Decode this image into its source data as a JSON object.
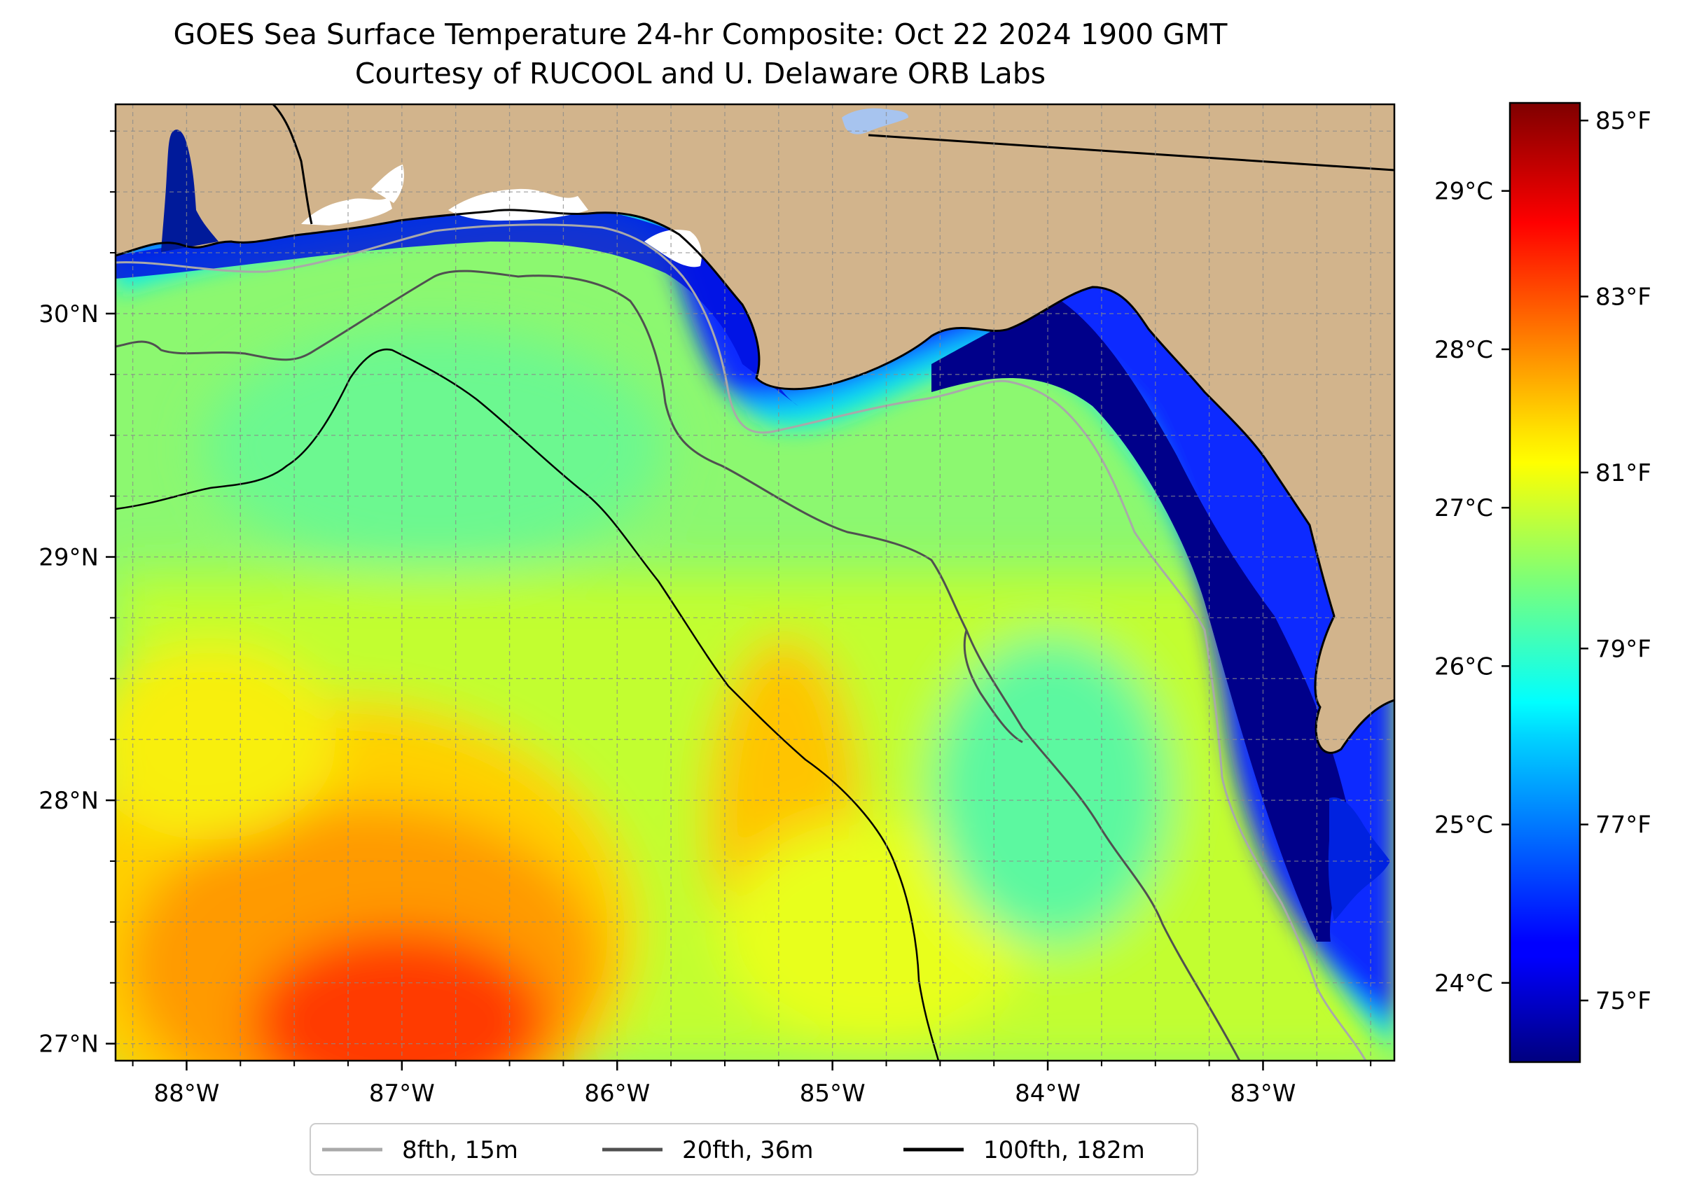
{
  "title": "GOES Sea Surface Temperature 24-hr Composite: Oct 22 2024 1900 GMT",
  "subtitle": "Courtesy of RUCOOL and U. Delaware ORB Labs",
  "map": {
    "extent": {
      "lon_min": -88.33,
      "lon_max": -82.39,
      "lat_min": 26.93,
      "lat_max": 30.86
    },
    "lon_ticks": [
      {
        "value": -88,
        "label": "88°W"
      },
      {
        "value": -87,
        "label": "87°W"
      },
      {
        "value": -86,
        "label": "86°W"
      },
      {
        "value": -85,
        "label": "85°W"
      },
      {
        "value": -84,
        "label": "84°W"
      },
      {
        "value": -83,
        "label": "83°W"
      }
    ],
    "lat_ticks": [
      {
        "value": 27,
        "label": "27°N"
      },
      {
        "value": 28,
        "label": "28°N"
      },
      {
        "value": 29,
        "label": "29°N"
      },
      {
        "value": 30,
        "label": "30°N"
      }
    ],
    "gridlines": "dashed",
    "land_color": "#d2b48c",
    "coastline_color": "#000000"
  },
  "colorbar": {
    "colormap": "jet",
    "range_f": [
      74.3,
      85.2
    ],
    "f_ticks": [
      {
        "value": 75,
        "label": "75°F"
      },
      {
        "value": 77,
        "label": "77°F"
      },
      {
        "value": 79,
        "label": "79°F"
      },
      {
        "value": 81,
        "label": "81°F"
      },
      {
        "value": 83,
        "label": "83°F"
      },
      {
        "value": 85,
        "label": "85°F"
      }
    ],
    "c_ticks": [
      {
        "value": 24,
        "label": "24°C"
      },
      {
        "value": 25,
        "label": "25°C"
      },
      {
        "value": 26,
        "label": "26°C"
      },
      {
        "value": 27,
        "label": "27°C"
      },
      {
        "value": 28,
        "label": "28°C"
      },
      {
        "value": 29,
        "label": "29°C"
      }
    ]
  },
  "legend": {
    "placement": "bottom-center",
    "entries": [
      {
        "label": "8fth, 15m",
        "color": "#a9a9a9"
      },
      {
        "label": "20fth, 36m",
        "color": "#505050"
      },
      {
        "label": "100fth, 182m",
        "color": "#000000"
      }
    ]
  }
}
